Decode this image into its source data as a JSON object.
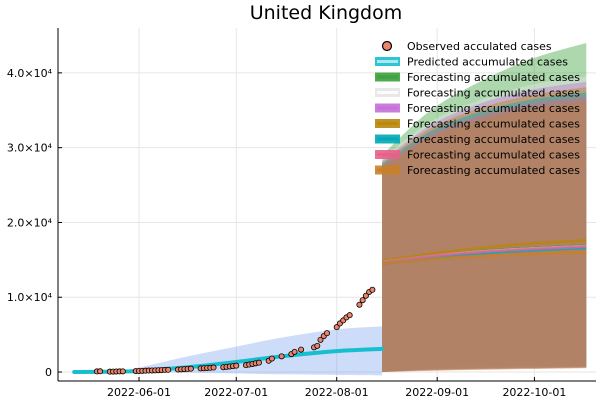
{
  "chart_data": {
    "type": "line",
    "title": "United Kingdom",
    "xlabel": "",
    "ylabel": "",
    "x_axis": {
      "type": "date",
      "range": [
        "2022-05-07",
        "2022-10-20"
      ],
      "ticks": [
        "2022-06-01",
        "2022-07-01",
        "2022-08-01",
        "2022-09-01",
        "2022-10-01"
      ]
    },
    "y_axis": {
      "range": [
        -1200,
        46000
      ],
      "ticks": [
        0,
        10000,
        20000,
        30000,
        40000
      ],
      "tick_labels": [
        "0",
        "1.0×10⁴",
        "2.0×10⁴",
        "3.0×10⁴",
        "4.0×10⁴"
      ]
    },
    "grid": true,
    "legend_position": "top-right",
    "observed": {
      "name": "Observed acculated cases",
      "color": "#e8856c",
      "points": [
        [
          "2022-05-19",
          80
        ],
        [
          "2022-05-20",
          100
        ],
        [
          "2022-05-23",
          50
        ],
        [
          "2022-05-24",
          60
        ],
        [
          "2022-05-25",
          70
        ],
        [
          "2022-05-26",
          80
        ],
        [
          "2022-05-27",
          90
        ],
        [
          "2022-05-31",
          120
        ],
        [
          "2022-06-01",
          140
        ],
        [
          "2022-06-02",
          160
        ],
        [
          "2022-06-03",
          180
        ],
        [
          "2022-06-04",
          200
        ],
        [
          "2022-06-05",
          210
        ],
        [
          "2022-06-06",
          220
        ],
        [
          "2022-06-07",
          240
        ],
        [
          "2022-06-08",
          260
        ],
        [
          "2022-06-09",
          280
        ],
        [
          "2022-06-10",
          300
        ],
        [
          "2022-06-13",
          330
        ],
        [
          "2022-06-14",
          360
        ],
        [
          "2022-06-15",
          390
        ],
        [
          "2022-06-16",
          420
        ],
        [
          "2022-06-17",
          450
        ],
        [
          "2022-06-20",
          480
        ],
        [
          "2022-06-21",
          510
        ],
        [
          "2022-06-22",
          540
        ],
        [
          "2022-06-23",
          570
        ],
        [
          "2022-06-24",
          600
        ],
        [
          "2022-06-27",
          640
        ],
        [
          "2022-06-28",
          690
        ],
        [
          "2022-06-29",
          740
        ],
        [
          "2022-06-30",
          790
        ],
        [
          "2022-07-01",
          850
        ],
        [
          "2022-07-04",
          920
        ],
        [
          "2022-07-05",
          1000
        ],
        [
          "2022-07-06",
          1080
        ],
        [
          "2022-07-07",
          1160
        ],
        [
          "2022-07-08",
          1250
        ],
        [
          "2022-07-11",
          1500
        ],
        [
          "2022-07-12",
          1800
        ],
        [
          "2022-07-15",
          2100
        ],
        [
          "2022-07-18",
          2400
        ],
        [
          "2022-07-19",
          2700
        ],
        [
          "2022-07-21",
          3000
        ],
        [
          "2022-07-25",
          3300
        ],
        [
          "2022-07-26",
          3500
        ],
        [
          "2022-07-27",
          4300
        ],
        [
          "2022-07-28",
          4800
        ],
        [
          "2022-07-29",
          5200
        ],
        [
          "2022-08-01",
          6000
        ],
        [
          "2022-08-02",
          6500
        ],
        [
          "2022-08-03",
          6900
        ],
        [
          "2022-08-04",
          7300
        ],
        [
          "2022-08-05",
          7600
        ],
        [
          "2022-08-08",
          9000
        ],
        [
          "2022-08-09",
          9600
        ],
        [
          "2022-08-10",
          10200
        ],
        [
          "2022-08-11",
          10700
        ],
        [
          "2022-08-12",
          11000
        ]
      ]
    },
    "predicted": {
      "name": "Predicted accumulated cases",
      "color": "#17becf",
      "band_color": "#6495ed",
      "x": [
        "2022-05-12",
        "2022-05-25",
        "2022-06-01",
        "2022-06-15",
        "2022-07-01",
        "2022-07-15",
        "2022-08-01",
        "2022-08-15"
      ],
      "values": [
        0,
        50,
        150,
        600,
        1350,
        2100,
        2800,
        3100
      ],
      "band_low": [
        0,
        -30,
        -50,
        -100,
        -200,
        -300,
        -400,
        -450
      ],
      "band_high": [
        0,
        150,
        600,
        2000,
        3400,
        4600,
        5700,
        6100
      ]
    },
    "forecast": {
      "x": [
        "2022-08-15",
        "2022-08-30",
        "2022-09-15",
        "2022-10-01",
        "2022-10-17"
      ],
      "series": [
        {
          "name": "Forecasting accumulated cases",
          "color": "#3ca03c",
          "band_color": "#3ca03c",
          "values": [
            14800,
            15600,
            16200,
            16600,
            16900
          ],
          "band_low": [
            0,
            500,
            700,
            800,
            900
          ],
          "band_high": [
            29000,
            35000,
            39000,
            42000,
            44000
          ]
        },
        {
          "name": "Forecasting accumulated cases",
          "color": "#ffffff",
          "band_color": "#e5e5e5",
          "values": [
            14700,
            15500,
            16100,
            16500,
            16800
          ],
          "band_low": [
            0,
            400,
            600,
            700,
            800
          ],
          "band_high": [
            28500,
            33500,
            36500,
            38500,
            39500
          ]
        },
        {
          "name": "Forecasting accumulated cases",
          "color": "#c470d8",
          "band_color": "#c470d8",
          "values": [
            14600,
            15400,
            16000,
            16400,
            16700
          ],
          "band_low": [
            0,
            350,
            500,
            600,
            700
          ],
          "band_high": [
            28200,
            33000,
            36000,
            37800,
            38800
          ]
        },
        {
          "name": "Forecasting accumulated cases",
          "color": "#b8860b",
          "band_color": "#b8860b",
          "values": [
            14800,
            15800,
            16600,
            17200,
            17600
          ],
          "band_low": [
            0,
            300,
            450,
            550,
            650
          ],
          "band_high": [
            28000,
            32600,
            35400,
            37100,
            38100
          ]
        },
        {
          "name": "Forecasting accumulated cases",
          "color": "#00a9b5",
          "band_color": "#00a9b5",
          "values": [
            14500,
            15300,
            15900,
            16300,
            16600
          ],
          "band_low": [
            0,
            250,
            400,
            500,
            600
          ],
          "band_high": [
            27800,
            32200,
            34900,
            36500,
            37400
          ]
        },
        {
          "name": "Forecasting accumulated cases",
          "color": "#e8608a",
          "band_color": "#e8608a",
          "values": [
            14600,
            15500,
            16100,
            16500,
            16800
          ],
          "band_low": [
            0,
            200,
            350,
            450,
            550
          ],
          "band_high": [
            27600,
            31800,
            34400,
            36000,
            36800
          ]
        },
        {
          "name": "Forecasting accumulated cases",
          "color": "#c87f2a",
          "band_color": "#c87f2a",
          "values": [
            14500,
            15100,
            15500,
            15800,
            16000
          ],
          "band_low": [
            0,
            150,
            300,
            400,
            500
          ],
          "band_high": [
            27400,
            31400,
            33900,
            35400,
            36200
          ]
        }
      ]
    }
  }
}
